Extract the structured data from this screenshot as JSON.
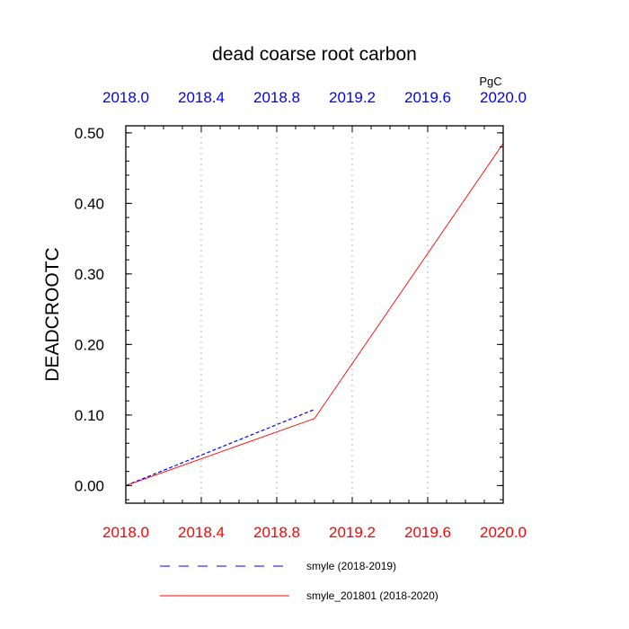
{
  "chart_data": {
    "type": "line",
    "title": "dead coarse root carbon",
    "units": "PgC",
    "ylabel": "DEADCROOTC",
    "xlabel": "",
    "xlim": [
      2018.0,
      2020.0
    ],
    "ylim": [
      -0.025,
      0.51
    ],
    "x_ticks": [
      2018.0,
      2018.4,
      2018.8,
      2019.2,
      2019.6,
      2020.0
    ],
    "x_tick_labels": [
      "2018.0",
      "2018.4",
      "2018.8",
      "2019.2",
      "2019.6",
      "2020.0"
    ],
    "y_ticks": [
      0.0,
      0.1,
      0.2,
      0.3,
      0.4,
      0.5
    ],
    "y_tick_labels": [
      "0.00",
      "0.10",
      "0.20",
      "0.30",
      "0.40",
      "0.50"
    ],
    "grid": "vertical dotted",
    "legend_position": "bottom",
    "colors": {
      "top_axis_labels": "#0000ff",
      "bottom_axis_labels": "#ff0000",
      "grid": "#c8c8c8",
      "frame": "#000000"
    },
    "series": [
      {
        "name": "smyle (2018-2019)",
        "color": "#0000ff",
        "style": "dashed",
        "x": [
          2018.0,
          2019.0
        ],
        "y": [
          0.0,
          0.108
        ]
      },
      {
        "name": "smyle_201801 (2018-2020)",
        "color": "#ff0000",
        "style": "solid",
        "x": [
          2018.0,
          2019.0,
          2020.0
        ],
        "y": [
          0.0,
          0.095,
          0.485
        ]
      }
    ]
  }
}
